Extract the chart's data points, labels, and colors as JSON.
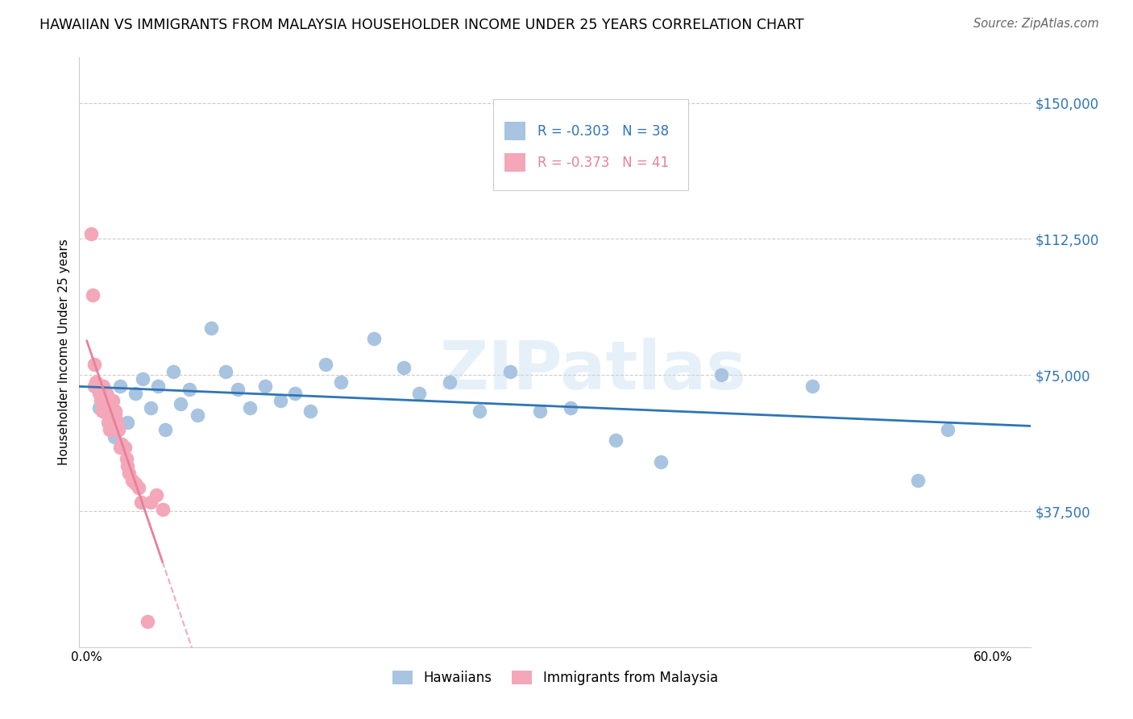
{
  "title": "HAWAIIAN VS IMMIGRANTS FROM MALAYSIA HOUSEHOLDER INCOME UNDER 25 YEARS CORRELATION CHART",
  "source": "Source: ZipAtlas.com",
  "ylabel": "Householder Income Under 25 years",
  "ytick_labels": [
    "$37,500",
    "$75,000",
    "$112,500",
    "$150,000"
  ],
  "ytick_vals": [
    37500,
    75000,
    112500,
    150000
  ],
  "xlabel_ticks": [
    "0.0%",
    "",
    "",
    "",
    "",
    "",
    "60.0%"
  ],
  "xlabel_vals": [
    0.0,
    0.1,
    0.2,
    0.3,
    0.4,
    0.5,
    0.6
  ],
  "ylim": [
    0,
    162500
  ],
  "xlim": [
    -0.005,
    0.625
  ],
  "legend_blue_r": "R = -0.303",
  "legend_blue_n": "N = 38",
  "legend_pink_r": "R = -0.373",
  "legend_pink_n": "N = 41",
  "blue_scatter_color": "#a8c4e0",
  "pink_scatter_color": "#f4a7b9",
  "blue_line_color": "#2e75b6",
  "pink_line_color": "#e8809a",
  "watermark_text": "ZIPatlas",
  "hawaiians_x": [
    0.008,
    0.013,
    0.018,
    0.022,
    0.027,
    0.032,
    0.037,
    0.042,
    0.047,
    0.052,
    0.057,
    0.062,
    0.068,
    0.073,
    0.082,
    0.092,
    0.1,
    0.108,
    0.118,
    0.128,
    0.138,
    0.148,
    0.158,
    0.168,
    0.19,
    0.21,
    0.22,
    0.24,
    0.26,
    0.28,
    0.3,
    0.32,
    0.35,
    0.38,
    0.42,
    0.48,
    0.55,
    0.57
  ],
  "hawaiians_y": [
    66000,
    70000,
    58000,
    72000,
    62000,
    70000,
    74000,
    66000,
    72000,
    60000,
    76000,
    67000,
    71000,
    64000,
    88000,
    76000,
    71000,
    66000,
    72000,
    68000,
    70000,
    65000,
    78000,
    73000,
    85000,
    77000,
    70000,
    73000,
    65000,
    76000,
    65000,
    66000,
    57000,
    51000,
    75000,
    72000,
    46000,
    60000
  ],
  "malaysia_x": [
    0.003,
    0.004,
    0.005,
    0.005,
    0.006,
    0.007,
    0.008,
    0.009,
    0.01,
    0.01,
    0.011,
    0.011,
    0.012,
    0.013,
    0.013,
    0.014,
    0.014,
    0.015,
    0.015,
    0.016,
    0.017,
    0.017,
    0.018,
    0.019,
    0.019,
    0.02,
    0.021,
    0.022,
    0.023,
    0.025,
    0.026,
    0.027,
    0.028,
    0.03,
    0.032,
    0.034,
    0.036,
    0.04,
    0.042,
    0.046,
    0.05
  ],
  "malaysia_y": [
    114000,
    97000,
    78000,
    72000,
    73000,
    72000,
    70000,
    68000,
    72000,
    65000,
    72000,
    68000,
    65000,
    70000,
    65000,
    68000,
    62000,
    64000,
    60000,
    63000,
    68000,
    60000,
    60000,
    64000,
    65000,
    62000,
    60000,
    55000,
    56000,
    55000,
    52000,
    50000,
    48000,
    46000,
    45000,
    44000,
    40000,
    7000,
    40000,
    42000,
    38000
  ]
}
